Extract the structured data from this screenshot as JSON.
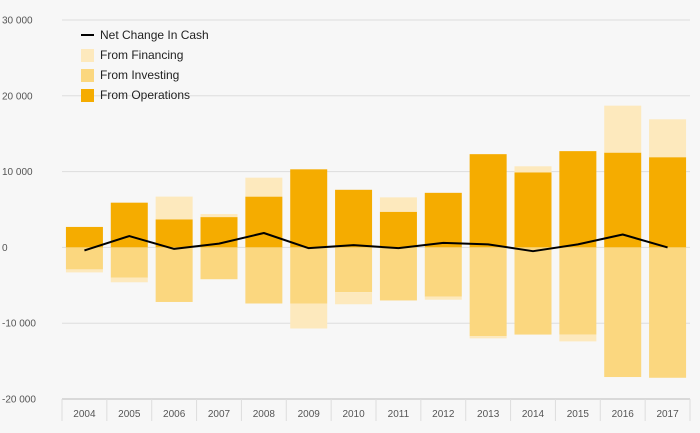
{
  "colors": {
    "operations": "#f5ac00",
    "investing": "#fbd77f",
    "financing": "#fde9bd",
    "net": "#000000",
    "grid": "#dddddd",
    "background": "#f7f7f7",
    "axis": "#bbbbbb"
  },
  "chart_data": {
    "type": "bar",
    "title": "",
    "xlabel": "",
    "ylabel": "",
    "stacked": true,
    "categories": [
      "2004",
      "2005",
      "2006",
      "2007",
      "2008",
      "2009",
      "2010",
      "2011",
      "2012",
      "2013",
      "2014",
      "2015",
      "2016",
      "2017"
    ],
    "ylim": [
      -20000,
      30000
    ],
    "yticks": [
      -20000,
      -10000,
      0,
      10000,
      20000,
      30000
    ],
    "ytick_labels": [
      "-20 000",
      "-10 000",
      "0",
      "10 000",
      "20 000",
      "30 000"
    ],
    "grid": true,
    "legend_position": "top-left",
    "series": [
      {
        "name": "From Operations",
        "kind": "bar",
        "color_key": "operations",
        "values": [
          2700,
          5900,
          3700,
          4000,
          6700,
          10300,
          7600,
          4700,
          7200,
          12300,
          9900,
          12700,
          12500,
          11900
        ]
      },
      {
        "name": "From Investing",
        "kind": "bar",
        "color_key": "investing",
        "values": [
          -2900,
          -4000,
          -7200,
          -4200,
          -7400,
          -7400,
          -5900,
          -7000,
          -6500,
          -11700,
          -11500,
          -11500,
          -17100,
          -17200
        ]
      },
      {
        "name": "From Financing",
        "kind": "bar",
        "color_key": "financing",
        "values": [
          -400,
          -600,
          3000,
          400,
          2500,
          -3300,
          -1600,
          1900,
          -400,
          -300,
          800,
          -900,
          6200,
          5000
        ]
      },
      {
        "name": "Net Change In Cash",
        "kind": "line",
        "color_key": "net",
        "values": [
          -400,
          1500,
          -200,
          500,
          1900,
          -100,
          300,
          -100,
          600,
          400,
          -500,
          400,
          1700,
          0
        ]
      }
    ],
    "legend": [
      {
        "label": "Net Change In Cash",
        "symbol": "line",
        "color_key": "net"
      },
      {
        "label": "From Financing",
        "symbol": "box",
        "color_key": "financing"
      },
      {
        "label": "From Investing",
        "symbol": "box",
        "color_key": "investing"
      },
      {
        "label": "From Operations",
        "symbol": "box",
        "color_key": "operations"
      }
    ]
  }
}
